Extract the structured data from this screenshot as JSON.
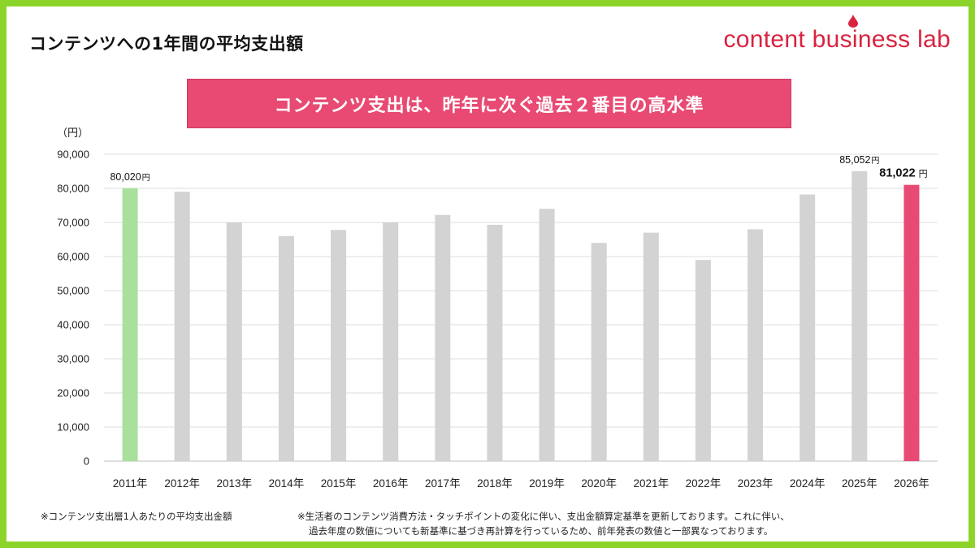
{
  "header": {
    "title": "コンテンツへの1年間の平均支出額",
    "brand": "content business lab"
  },
  "banner": {
    "text": "コンテンツ支出は、昨年に次ぐ過去２番目の高水準"
  },
  "colors": {
    "bar_default": "#d3d3d3",
    "bar_first": "#a9e09b",
    "bar_last": "#e84a73",
    "gridline": "#dedede",
    "brand": "#d9233f",
    "frame": "#8dd42a"
  },
  "chart_data": {
    "type": "bar",
    "ylabel": "（円）",
    "ylim": [
      0,
      90000
    ],
    "yticks": [
      0,
      10000,
      20000,
      30000,
      40000,
      50000,
      60000,
      70000,
      80000,
      90000
    ],
    "ytick_labels": [
      "0",
      "10,000",
      "20,000",
      "30,000",
      "40,000",
      "50,000",
      "60,000",
      "70,000",
      "80,000",
      "90,000"
    ],
    "categories": [
      "2011年",
      "2012年",
      "2013年",
      "2014年",
      "2015年",
      "2016年",
      "2017年",
      "2018年",
      "2019年",
      "2020年",
      "2021年",
      "2022年",
      "2023年",
      "2024年",
      "2025年",
      "2026年"
    ],
    "values": [
      80020,
      79000,
      70000,
      66000,
      67800,
      70000,
      72200,
      69300,
      74000,
      64000,
      67000,
      59000,
      68000,
      78200,
      85052,
      81022
    ],
    "grid": true,
    "data_labels": [
      {
        "index": 0,
        "value": "80,020",
        "unit": "円"
      },
      {
        "index": 14,
        "value": "85,052",
        "unit": "円"
      },
      {
        "index": 15,
        "value": "81,022",
        "unit": "円"
      }
    ]
  },
  "notes": {
    "left": "※コンテンツ支出層1人あたりの平均支出金額",
    "right_line1": "※生活者のコンテンツ消費方法・タッチポイントの変化に伴い、支出金額算定基準を更新しております。これに伴い、",
    "right_line2": "過去年度の数値についても新基準に基づき再計算を行っているため、前年発表の数値と一部異なっております。"
  }
}
